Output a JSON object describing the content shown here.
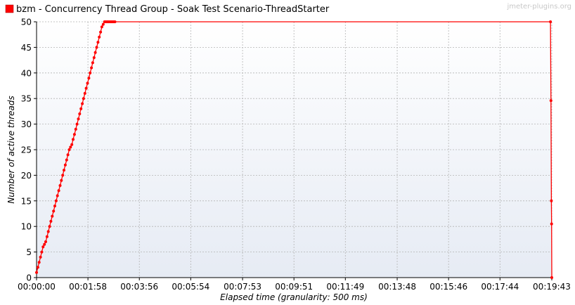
{
  "watermark": "jmeter-plugins.org",
  "chart_data": {
    "type": "line",
    "xlabel": "Elapsed time (granularity: 500 ms)",
    "ylabel": "Number of active threads",
    "xlim": [
      0,
      1183
    ],
    "ylim": [
      0,
      50
    ],
    "grid": true,
    "legend_position": "top-left",
    "x_tick_labels": [
      "00:00:00",
      "00:01:58",
      "00:03:56",
      "00:05:54",
      "00:07:53",
      "00:09:51",
      "00:11:49",
      "00:13:48",
      "00:15:46",
      "00:17:44",
      "00:19:43"
    ],
    "x_tick_values": [
      0,
      118,
      236,
      354,
      473,
      591,
      709,
      828,
      946,
      1064,
      1183
    ],
    "y_tick_values": [
      0,
      5,
      10,
      15,
      20,
      25,
      30,
      35,
      40,
      45,
      50
    ],
    "series": [
      {
        "name": "bzm - Concurrency Thread Group - Soak Test Scenario-ThreadStarter",
        "color": "#ff0000",
        "x": [
          0,
          3,
          6,
          9,
          12,
          15,
          18,
          21,
          24,
          27,
          30,
          33,
          36,
          39,
          42,
          45,
          48,
          51,
          54,
          57,
          60,
          63,
          66,
          69,
          72,
          75,
          78,
          81,
          84,
          87,
          90,
          93,
          96,
          99,
          102,
          105,
          108,
          111,
          114,
          117,
          120,
          123,
          126,
          129,
          132,
          135,
          138,
          141,
          144,
          147,
          150,
          153,
          156,
          159,
          162,
          165,
          168,
          171,
          174,
          177,
          180,
          1180,
          1181,
          1182,
          1182.5,
          1183
        ],
        "y": [
          1,
          2,
          3,
          4,
          5,
          6,
          6.5,
          7,
          8,
          9,
          10,
          11,
          12,
          13,
          14,
          15,
          16,
          17,
          18,
          19,
          20,
          21,
          22,
          23,
          24,
          25,
          25.5,
          26,
          27,
          28,
          29,
          30,
          31,
          32,
          33,
          34,
          35,
          36,
          37,
          38,
          39,
          40,
          41,
          42,
          43,
          44,
          45,
          46,
          47,
          48,
          49,
          49.5,
          50,
          50,
          50,
          50,
          50,
          50,
          50,
          50,
          50,
          50,
          34.6,
          15,
          10.5,
          0
        ]
      }
    ]
  }
}
